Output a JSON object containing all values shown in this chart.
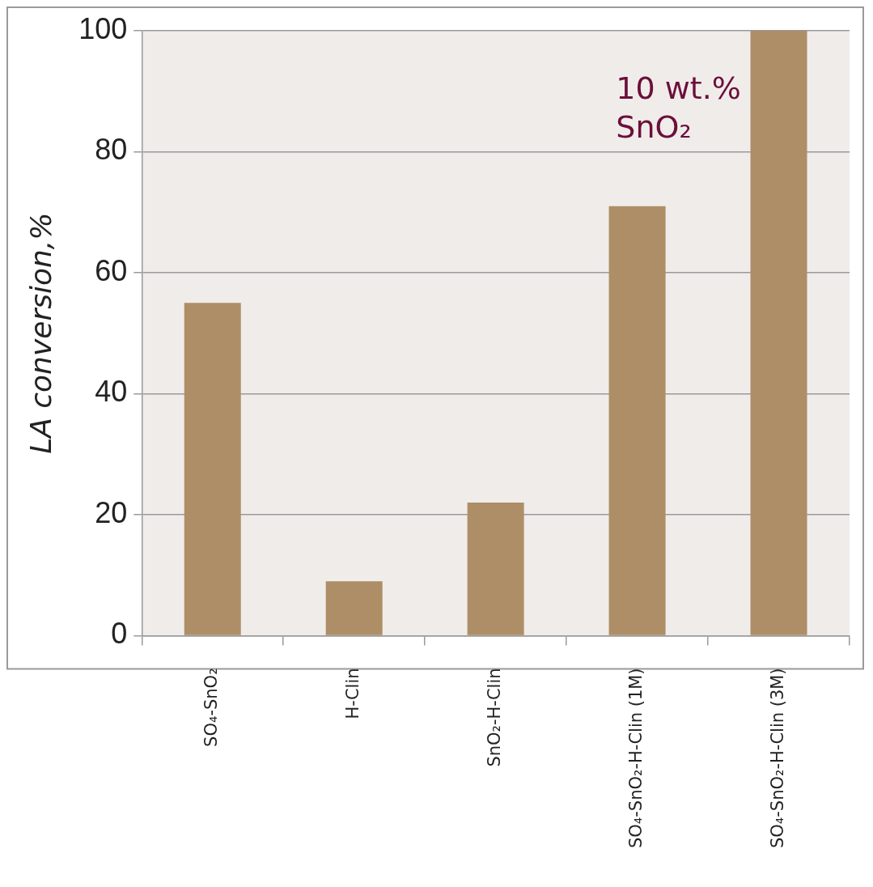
{
  "chart_data": {
    "type": "bar",
    "ylabel": "LA conversion,%",
    "categories": [
      "SO₄-SnO₂",
      "H-Clin",
      "SnO₂-H-Clin",
      "SO₄-SnO₂-H-Clin (1M)",
      "SO₄-SnO₂-H-Clin (3M)"
    ],
    "values": [
      55,
      9,
      22,
      71,
      100
    ],
    "color": "#ad8e66",
    "ylim": [
      0,
      100
    ],
    "yticks": [
      0,
      20,
      40,
      60,
      80,
      100
    ],
    "grid": "y",
    "legend": false,
    "annotations": [
      "10 wt.% SnO₂"
    ]
  }
}
